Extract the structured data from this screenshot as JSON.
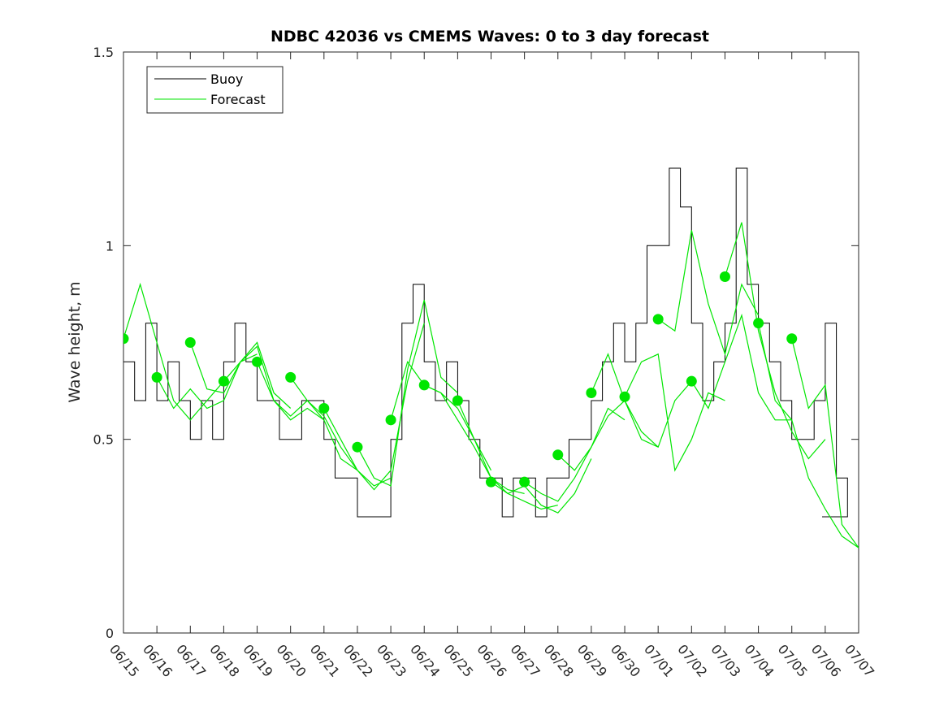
{
  "chart_data": {
    "type": "line",
    "title": "NDBC 42036 vs CMEMS Waves: 0 to 3 day forecast",
    "ylabel": "Wave height, m",
    "xlabel": "",
    "ylim": [
      0,
      1.5
    ],
    "yticks": [
      0,
      0.5,
      1,
      1.5
    ],
    "ytick_labels": [
      "0",
      "0.5",
      "1",
      "1.5"
    ],
    "xlim": [
      "2023-06-15",
      "2023-07-07"
    ],
    "xtick_labels": [
      "06/15",
      "06/16",
      "06/17",
      "06/18",
      "06/19",
      "06/20",
      "06/21",
      "06/22",
      "06/23",
      "06/24",
      "06/25",
      "06/26",
      "06/27",
      "06/28",
      "06/29",
      "06/30",
      "07/01",
      "07/02",
      "07/03",
      "07/04",
      "07/05",
      "07/06",
      "07/07"
    ],
    "grid": false,
    "legend": {
      "position": "top-left",
      "entries": [
        "Buoy",
        "Forecast"
      ]
    },
    "colors": {
      "buoy": "#000000",
      "forecast": "#00e600",
      "axis": "#262626"
    },
    "buoy": {
      "name": "Buoy",
      "x": [
        "2023-06-15 00:00",
        "2023-06-15 08:00",
        "2023-06-15 16:00",
        "2023-06-16 00:00",
        "2023-06-16 08:00",
        "2023-06-16 16:00",
        "2023-06-17 00:00",
        "2023-06-17 08:00",
        "2023-06-17 16:00",
        "2023-06-18 00:00",
        "2023-06-18 08:00",
        "2023-06-18 16:00",
        "2023-06-19 00:00",
        "2023-06-19 08:00",
        "2023-06-19 16:00",
        "2023-06-20 00:00",
        "2023-06-20 08:00",
        "2023-06-20 16:00",
        "2023-06-21 00:00",
        "2023-06-21 08:00",
        "2023-06-21 16:00",
        "2023-06-22 00:00",
        "2023-06-22 08:00",
        "2023-06-22 16:00",
        "2023-06-23 00:00",
        "2023-06-23 08:00",
        "2023-06-23 16:00",
        "2023-06-24 00:00",
        "2023-06-24 08:00",
        "2023-06-24 16:00",
        "2023-06-25 00:00",
        "2023-06-25 08:00",
        "2023-06-25 16:00",
        "2023-06-26 00:00",
        "2023-06-26 08:00",
        "2023-06-26 16:00",
        "2023-06-27 00:00",
        "2023-06-27 08:00",
        "2023-06-27 16:00",
        "2023-06-28 00:00",
        "2023-06-28 08:00",
        "2023-06-28 16:00",
        "2023-06-29 00:00",
        "2023-06-29 08:00",
        "2023-06-29 16:00",
        "2023-06-30 00:00",
        "2023-06-30 08:00",
        "2023-06-30 16:00",
        "2023-07-01 00:00",
        "2023-07-01 08:00",
        "2023-07-01 16:00",
        "2023-07-02 00:00",
        "2023-07-02 08:00",
        "2023-07-02 16:00",
        "2023-07-03 00:00",
        "2023-07-03 08:00",
        "2023-07-03 16:00",
        "2023-07-04 00:00",
        "2023-07-04 08:00",
        "2023-07-04 16:00",
        "2023-07-05 00:00",
        "2023-07-05 08:00",
        "2023-07-05 16:00",
        "2023-07-06 00:00",
        "2023-07-06 08:00",
        "2023-07-06 16:00"
      ],
      "values": [
        0.7,
        0.6,
        0.8,
        0.6,
        0.7,
        0.6,
        0.5,
        0.6,
        0.5,
        0.7,
        0.8,
        0.7,
        0.6,
        0.6,
        0.5,
        0.5,
        0.6,
        0.6,
        0.5,
        0.4,
        0.4,
        0.3,
        0.3,
        0.3,
        0.5,
        0.8,
        0.9,
        0.7,
        0.6,
        0.7,
        0.6,
        0.5,
        0.4,
        0.4,
        0.3,
        0.4,
        0.4,
        0.3,
        0.4,
        0.4,
        0.5,
        0.5,
        0.6,
        0.7,
        0.8,
        0.7,
        0.8,
        1.0,
        1.0,
        1.2,
        1.1,
        0.8,
        0.6,
        0.7,
        0.8,
        1.2,
        0.9,
        0.8,
        0.7,
        0.6,
        0.5,
        0.5,
        0.6,
        0.8,
        0.4,
        0.3
      ]
    },
    "forecast_runs": [
      {
        "name": "Forecast",
        "x": [
          "2023-06-15 00:00",
          "2023-06-15 12:00",
          "2023-06-16 00:00",
          "2023-06-16 12:00",
          "2023-06-17 00:00",
          "2023-06-17 12:00",
          "2023-06-18 00:00"
        ],
        "values": [
          0.76,
          0.9,
          0.75,
          0.6,
          0.55,
          0.6,
          0.65
        ]
      },
      {
        "name": "Forecast",
        "x": [
          "2023-06-16 00:00",
          "2023-06-16 12:00",
          "2023-06-17 00:00",
          "2023-06-17 12:00",
          "2023-06-18 00:00",
          "2023-06-18 12:00",
          "2023-06-19 00:00"
        ],
        "values": [
          0.66,
          0.58,
          0.63,
          0.58,
          0.6,
          0.7,
          0.72
        ]
      },
      {
        "name": "Forecast",
        "x": [
          "2023-06-17 00:00",
          "2023-06-17 12:00",
          "2023-06-18 00:00",
          "2023-06-18 12:00",
          "2023-06-19 00:00",
          "2023-06-19 12:00",
          "2023-06-20 00:00"
        ],
        "values": [
          0.75,
          0.63,
          0.62,
          0.7,
          0.75,
          0.62,
          0.58
        ]
      },
      {
        "name": "Forecast",
        "x": [
          "2023-06-18 00:00",
          "2023-06-18 12:00",
          "2023-06-19 00:00",
          "2023-06-19 12:00",
          "2023-06-20 00:00",
          "2023-06-20 12:00",
          "2023-06-21 00:00"
        ],
        "values": [
          0.65,
          0.7,
          0.74,
          0.6,
          0.55,
          0.58,
          0.55
        ]
      },
      {
        "name": "Forecast",
        "x": [
          "2023-06-19 00:00",
          "2023-06-19 12:00",
          "2023-06-20 00:00",
          "2023-06-20 12:00",
          "2023-06-21 00:00",
          "2023-06-21 12:00",
          "2023-06-22 00:00"
        ],
        "values": [
          0.7,
          0.6,
          0.56,
          0.6,
          0.55,
          0.45,
          0.42
        ]
      },
      {
        "name": "Forecast",
        "x": [
          "2023-06-20 00:00",
          "2023-06-20 12:00",
          "2023-06-21 00:00",
          "2023-06-21 12:00",
          "2023-06-22 00:00",
          "2023-06-22 12:00",
          "2023-06-23 00:00"
        ],
        "values": [
          0.66,
          0.6,
          0.56,
          0.48,
          0.42,
          0.38,
          0.4
        ]
      },
      {
        "name": "Forecast",
        "x": [
          "2023-06-21 00:00",
          "2023-06-21 12:00",
          "2023-06-22 00:00",
          "2023-06-22 12:00",
          "2023-06-23 00:00",
          "2023-06-23 12:00",
          "2023-06-24 00:00"
        ],
        "values": [
          0.58,
          0.5,
          0.42,
          0.37,
          0.42,
          0.65,
          0.8
        ]
      },
      {
        "name": "Forecast",
        "x": [
          "2023-06-22 00:00",
          "2023-06-22 12:00",
          "2023-06-23 00:00",
          "2023-06-23 12:00",
          "2023-06-24 00:00",
          "2023-06-24 12:00",
          "2023-06-25 00:00"
        ],
        "values": [
          0.48,
          0.4,
          0.38,
          0.68,
          0.86,
          0.66,
          0.62
        ]
      },
      {
        "name": "Forecast",
        "x": [
          "2023-06-23 00:00",
          "2023-06-23 12:00",
          "2023-06-24 00:00",
          "2023-06-24 12:00",
          "2023-06-25 00:00",
          "2023-06-25 12:00",
          "2023-06-26 00:00"
        ],
        "values": [
          0.55,
          0.7,
          0.64,
          0.62,
          0.58,
          0.5,
          0.42
        ]
      },
      {
        "name": "Forecast",
        "x": [
          "2023-06-24 00:00",
          "2023-06-24 12:00",
          "2023-06-25 00:00",
          "2023-06-25 12:00",
          "2023-06-26 00:00",
          "2023-06-26 12:00",
          "2023-06-27 00:00"
        ],
        "values": [
          0.64,
          0.62,
          0.55,
          0.48,
          0.4,
          0.37,
          0.36
        ]
      },
      {
        "name": "Forecast",
        "x": [
          "2023-06-25 00:00",
          "2023-06-25 12:00",
          "2023-06-26 00:00",
          "2023-06-26 12:00",
          "2023-06-27 00:00",
          "2023-06-27 12:00",
          "2023-06-28 00:00"
        ],
        "values": [
          0.6,
          0.5,
          0.4,
          0.36,
          0.34,
          0.32,
          0.33
        ]
      },
      {
        "name": "Forecast",
        "x": [
          "2023-06-26 00:00",
          "2023-06-26 12:00",
          "2023-06-27 00:00",
          "2023-06-27 12:00",
          "2023-06-28 00:00",
          "2023-06-28 12:00",
          "2023-06-29 00:00"
        ],
        "values": [
          0.39,
          0.36,
          0.38,
          0.33,
          0.31,
          0.36,
          0.45
        ]
      },
      {
        "name": "Forecast",
        "x": [
          "2023-06-27 00:00",
          "2023-06-27 12:00",
          "2023-06-28 00:00",
          "2023-06-28 12:00",
          "2023-06-29 00:00",
          "2023-06-29 12:00",
          "2023-06-30 00:00"
        ],
        "values": [
          0.39,
          0.36,
          0.34,
          0.4,
          0.48,
          0.58,
          0.55
        ]
      },
      {
        "name": "Forecast",
        "x": [
          "2023-06-28 00:00",
          "2023-06-28 12:00",
          "2023-06-29 00:00",
          "2023-06-29 12:00",
          "2023-06-30 00:00",
          "2023-06-30 12:00",
          "2023-07-01 00:00"
        ],
        "values": [
          0.46,
          0.42,
          0.48,
          0.56,
          0.6,
          0.52,
          0.48
        ]
      },
      {
        "name": "Forecast",
        "x": [
          "2023-06-29 00:00",
          "2023-06-29 12:00",
          "2023-06-30 00:00",
          "2023-06-30 12:00",
          "2023-07-01 00:00",
          "2023-07-01 12:00",
          "2023-07-02 00:00"
        ],
        "values": [
          0.62,
          0.72,
          0.6,
          0.5,
          0.48,
          0.6,
          0.65
        ]
      },
      {
        "name": "Forecast",
        "x": [
          "2023-06-30 00:00",
          "2023-06-30 12:00",
          "2023-07-01 00:00",
          "2023-07-01 12:00",
          "2023-07-02 00:00",
          "2023-07-02 12:00",
          "2023-07-03 00:00"
        ],
        "values": [
          0.61,
          0.7,
          0.72,
          0.42,
          0.5,
          0.62,
          0.6
        ]
      },
      {
        "name": "Forecast",
        "x": [
          "2023-07-01 00:00",
          "2023-07-01 12:00",
          "2023-07-02 00:00",
          "2023-07-02 12:00",
          "2023-07-03 00:00",
          "2023-07-03 12:00",
          "2023-07-04 00:00"
        ],
        "values": [
          0.81,
          0.78,
          1.04,
          0.85,
          0.72,
          0.9,
          0.82
        ]
      },
      {
        "name": "Forecast",
        "x": [
          "2023-07-02 00:00",
          "2023-07-02 12:00",
          "2023-07-03 00:00",
          "2023-07-03 12:00",
          "2023-07-04 00:00",
          "2023-07-04 12:00",
          "2023-07-05 00:00"
        ],
        "values": [
          0.65,
          0.58,
          0.7,
          0.82,
          0.62,
          0.55,
          0.55
        ]
      },
      {
        "name": "Forecast",
        "x": [
          "2023-07-03 00:00",
          "2023-07-03 12:00",
          "2023-07-04 00:00",
          "2023-07-04 12:00",
          "2023-07-05 00:00",
          "2023-07-05 12:00",
          "2023-07-06 00:00"
        ],
        "values": [
          0.92,
          1.06,
          0.78,
          0.62,
          0.52,
          0.45,
          0.5
        ]
      },
      {
        "name": "Forecast",
        "x": [
          "2023-07-04 00:00",
          "2023-07-04 12:00",
          "2023-07-05 00:00",
          "2023-07-05 12:00",
          "2023-07-06 00:00",
          "2023-07-06 12:00",
          "2023-07-07 00:00"
        ],
        "values": [
          0.8,
          0.6,
          0.55,
          0.4,
          0.32,
          0.25,
          0.22
        ]
      },
      {
        "name": "Forecast",
        "x": [
          "2023-07-05 00:00",
          "2023-07-05 12:00",
          "2023-07-06 00:00",
          "2023-07-06 12:00",
          "2023-07-07 00:00"
        ],
        "values": [
          0.76,
          0.58,
          0.64,
          0.28,
          0.22
        ]
      }
    ],
    "forecast_starts": {
      "x": [
        "2023-06-15",
        "2023-06-16",
        "2023-06-17",
        "2023-06-18",
        "2023-06-19",
        "2023-06-20",
        "2023-06-21",
        "2023-06-22",
        "2023-06-23",
        "2023-06-24",
        "2023-06-25",
        "2023-06-26",
        "2023-06-27",
        "2023-06-28",
        "2023-06-29",
        "2023-06-30",
        "2023-07-01",
        "2023-07-02",
        "2023-07-03",
        "2023-07-04",
        "2023-07-05"
      ],
      "values": [
        0.76,
        0.66,
        0.75,
        0.65,
        0.7,
        0.66,
        0.58,
        0.48,
        0.55,
        0.64,
        0.6,
        0.39,
        0.39,
        0.46,
        0.62,
        0.61,
        0.81,
        0.65,
        0.92,
        0.8,
        0.76
      ]
    }
  }
}
